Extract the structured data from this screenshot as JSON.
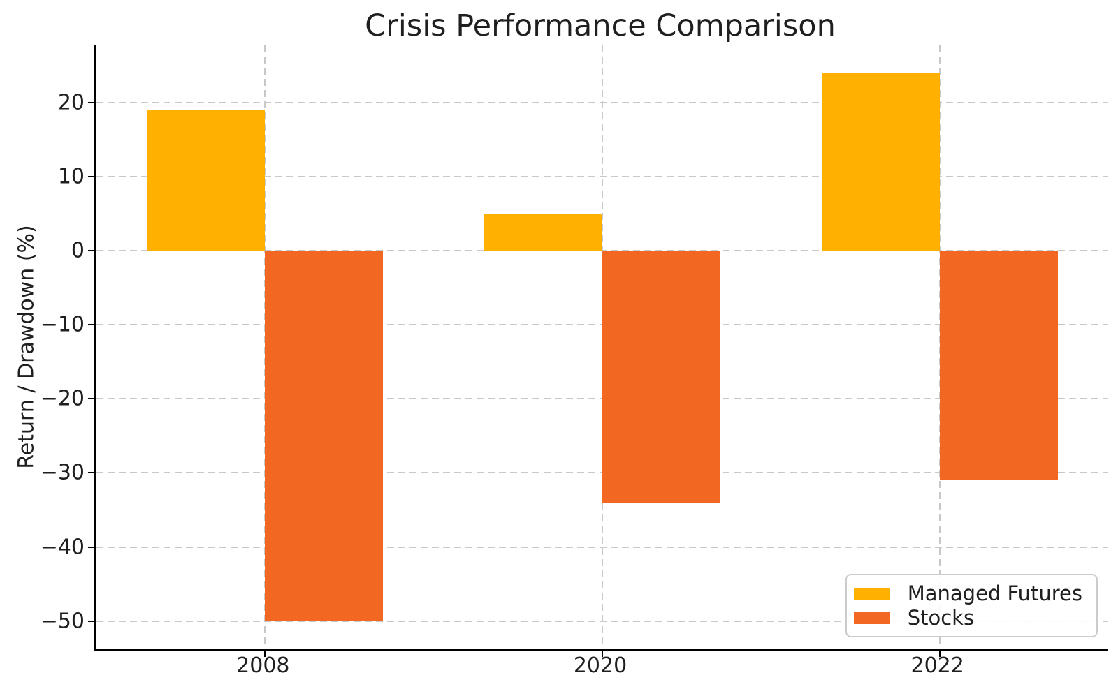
{
  "chart_data": {
    "type": "bar",
    "title": "Crisis Performance Comparison",
    "xlabel": "",
    "ylabel": "Return / Drawdown (%)",
    "categories": [
      "2008",
      "2020",
      "2022"
    ],
    "series": [
      {
        "name": "Managed Futures",
        "color": "#FFB000",
        "values": [
          19,
          5,
          24
        ]
      },
      {
        "name": "Stocks",
        "color": "#F26822",
        "values": [
          -50,
          -34,
          -31
        ]
      }
    ],
    "yticks": [
      20,
      10,
      0,
      -10,
      -20,
      -30,
      -40,
      -50
    ],
    "ytick_labels": [
      "20",
      "10",
      "0",
      "−10",
      "−20",
      "−30",
      "−40",
      "−50"
    ],
    "ylim": [
      -53.7,
      27.7
    ],
    "xlim": [
      -0.5,
      2.5
    ],
    "bar_width": 0.35,
    "grid": true,
    "grid_color": "#c8c8c8",
    "axis_color": "#000000",
    "legend": {
      "position": "lower right",
      "entries": [
        "Managed Futures",
        "Stocks"
      ]
    }
  }
}
